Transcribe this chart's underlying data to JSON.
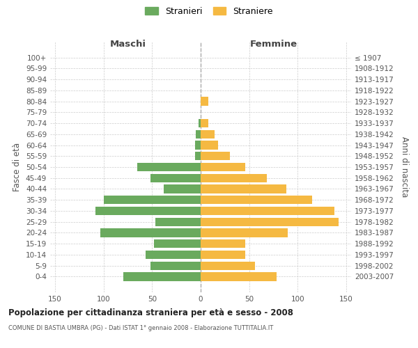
{
  "age_groups": [
    "100+",
    "95-99",
    "90-94",
    "85-89",
    "80-84",
    "75-79",
    "70-74",
    "65-69",
    "60-64",
    "55-59",
    "50-54",
    "45-49",
    "40-44",
    "35-39",
    "30-34",
    "25-29",
    "20-24",
    "15-19",
    "10-14",
    "5-9",
    "0-4"
  ],
  "birth_years": [
    "≤ 1907",
    "1908-1912",
    "1913-1917",
    "1918-1922",
    "1923-1927",
    "1928-1932",
    "1933-1937",
    "1938-1942",
    "1943-1947",
    "1948-1952",
    "1953-1957",
    "1958-1962",
    "1963-1967",
    "1968-1972",
    "1973-1977",
    "1978-1982",
    "1983-1987",
    "1988-1992",
    "1993-1997",
    "1998-2002",
    "2003-2007"
  ],
  "maschi": [
    0,
    0,
    0,
    0,
    0,
    0,
    2,
    5,
    6,
    6,
    65,
    52,
    38,
    100,
    108,
    47,
    103,
    48,
    57,
    52,
    80
  ],
  "femmine": [
    0,
    0,
    0,
    0,
    8,
    0,
    8,
    14,
    18,
    30,
    46,
    68,
    88,
    115,
    138,
    142,
    90,
    46,
    46,
    56,
    78
  ],
  "male_color": "#6aaa5e",
  "female_color": "#f5b942",
  "title": "Popolazione per cittadinanza straniera per età e sesso - 2008",
  "subtitle": "COMUNE DI BASTIA UMBRA (PG) - Dati ISTAT 1° gennaio 2008 - Elaborazione TUTTITALIA.IT",
  "ylabel_left": "Fasce di età",
  "ylabel_right": "Anni di nascita",
  "xlabel_left": "Maschi",
  "xlabel_right": "Femmine",
  "legend_male": "Stranieri",
  "legend_female": "Straniere",
  "xlim": 155,
  "background_color": "#ffffff",
  "grid_color": "#cccccc"
}
